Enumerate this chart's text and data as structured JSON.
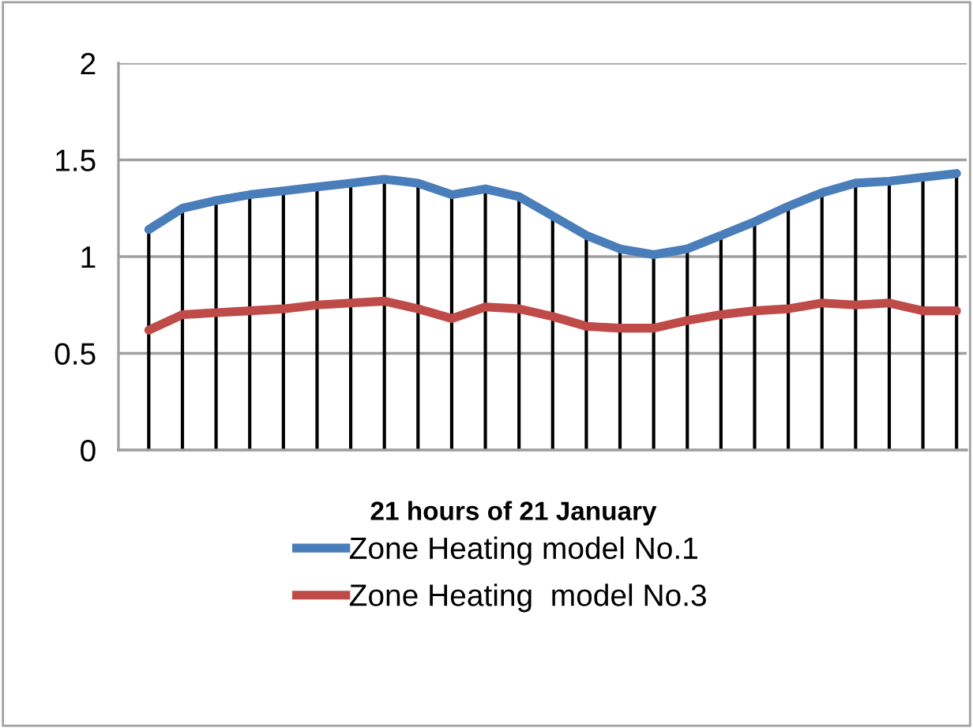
{
  "chart_data": {
    "type": "line",
    "xlabel": "21 hours of 21 January",
    "categories": [
      null,
      null,
      null,
      null,
      null,
      null,
      null,
      null,
      null,
      null,
      null,
      null,
      null,
      null,
      null,
      null,
      null,
      null,
      null,
      null,
      null,
      null,
      null,
      null,
      null
    ],
    "series": [
      {
        "name": "Zone Heating model No.1",
        "color": "#4a7ebb",
        "values": [
          1.14,
          1.25,
          1.29,
          1.32,
          1.34,
          1.36,
          1.38,
          1.4,
          1.38,
          1.32,
          1.35,
          1.31,
          1.21,
          1.11,
          1.04,
          1.01,
          1.04,
          1.11,
          1.18,
          1.26,
          1.33,
          1.38,
          1.39,
          1.41,
          1.43
        ]
      },
      {
        "name": "Zone Heating  model No.3",
        "color": "#be4b48",
        "values": [
          0.62,
          0.7,
          0.71,
          0.72,
          0.73,
          0.75,
          0.76,
          0.77,
          0.73,
          0.68,
          0.74,
          0.73,
          0.69,
          0.64,
          0.63,
          0.63,
          0.67,
          0.7,
          0.72,
          0.73,
          0.76,
          0.75,
          0.76,
          0.72,
          0.72
        ]
      }
    ],
    "ylim": [
      0,
      2
    ],
    "yticks": [
      0,
      0.5,
      1,
      1.5,
      2
    ],
    "grid": true,
    "legend": "bottom",
    "tick_labels": "y"
  }
}
